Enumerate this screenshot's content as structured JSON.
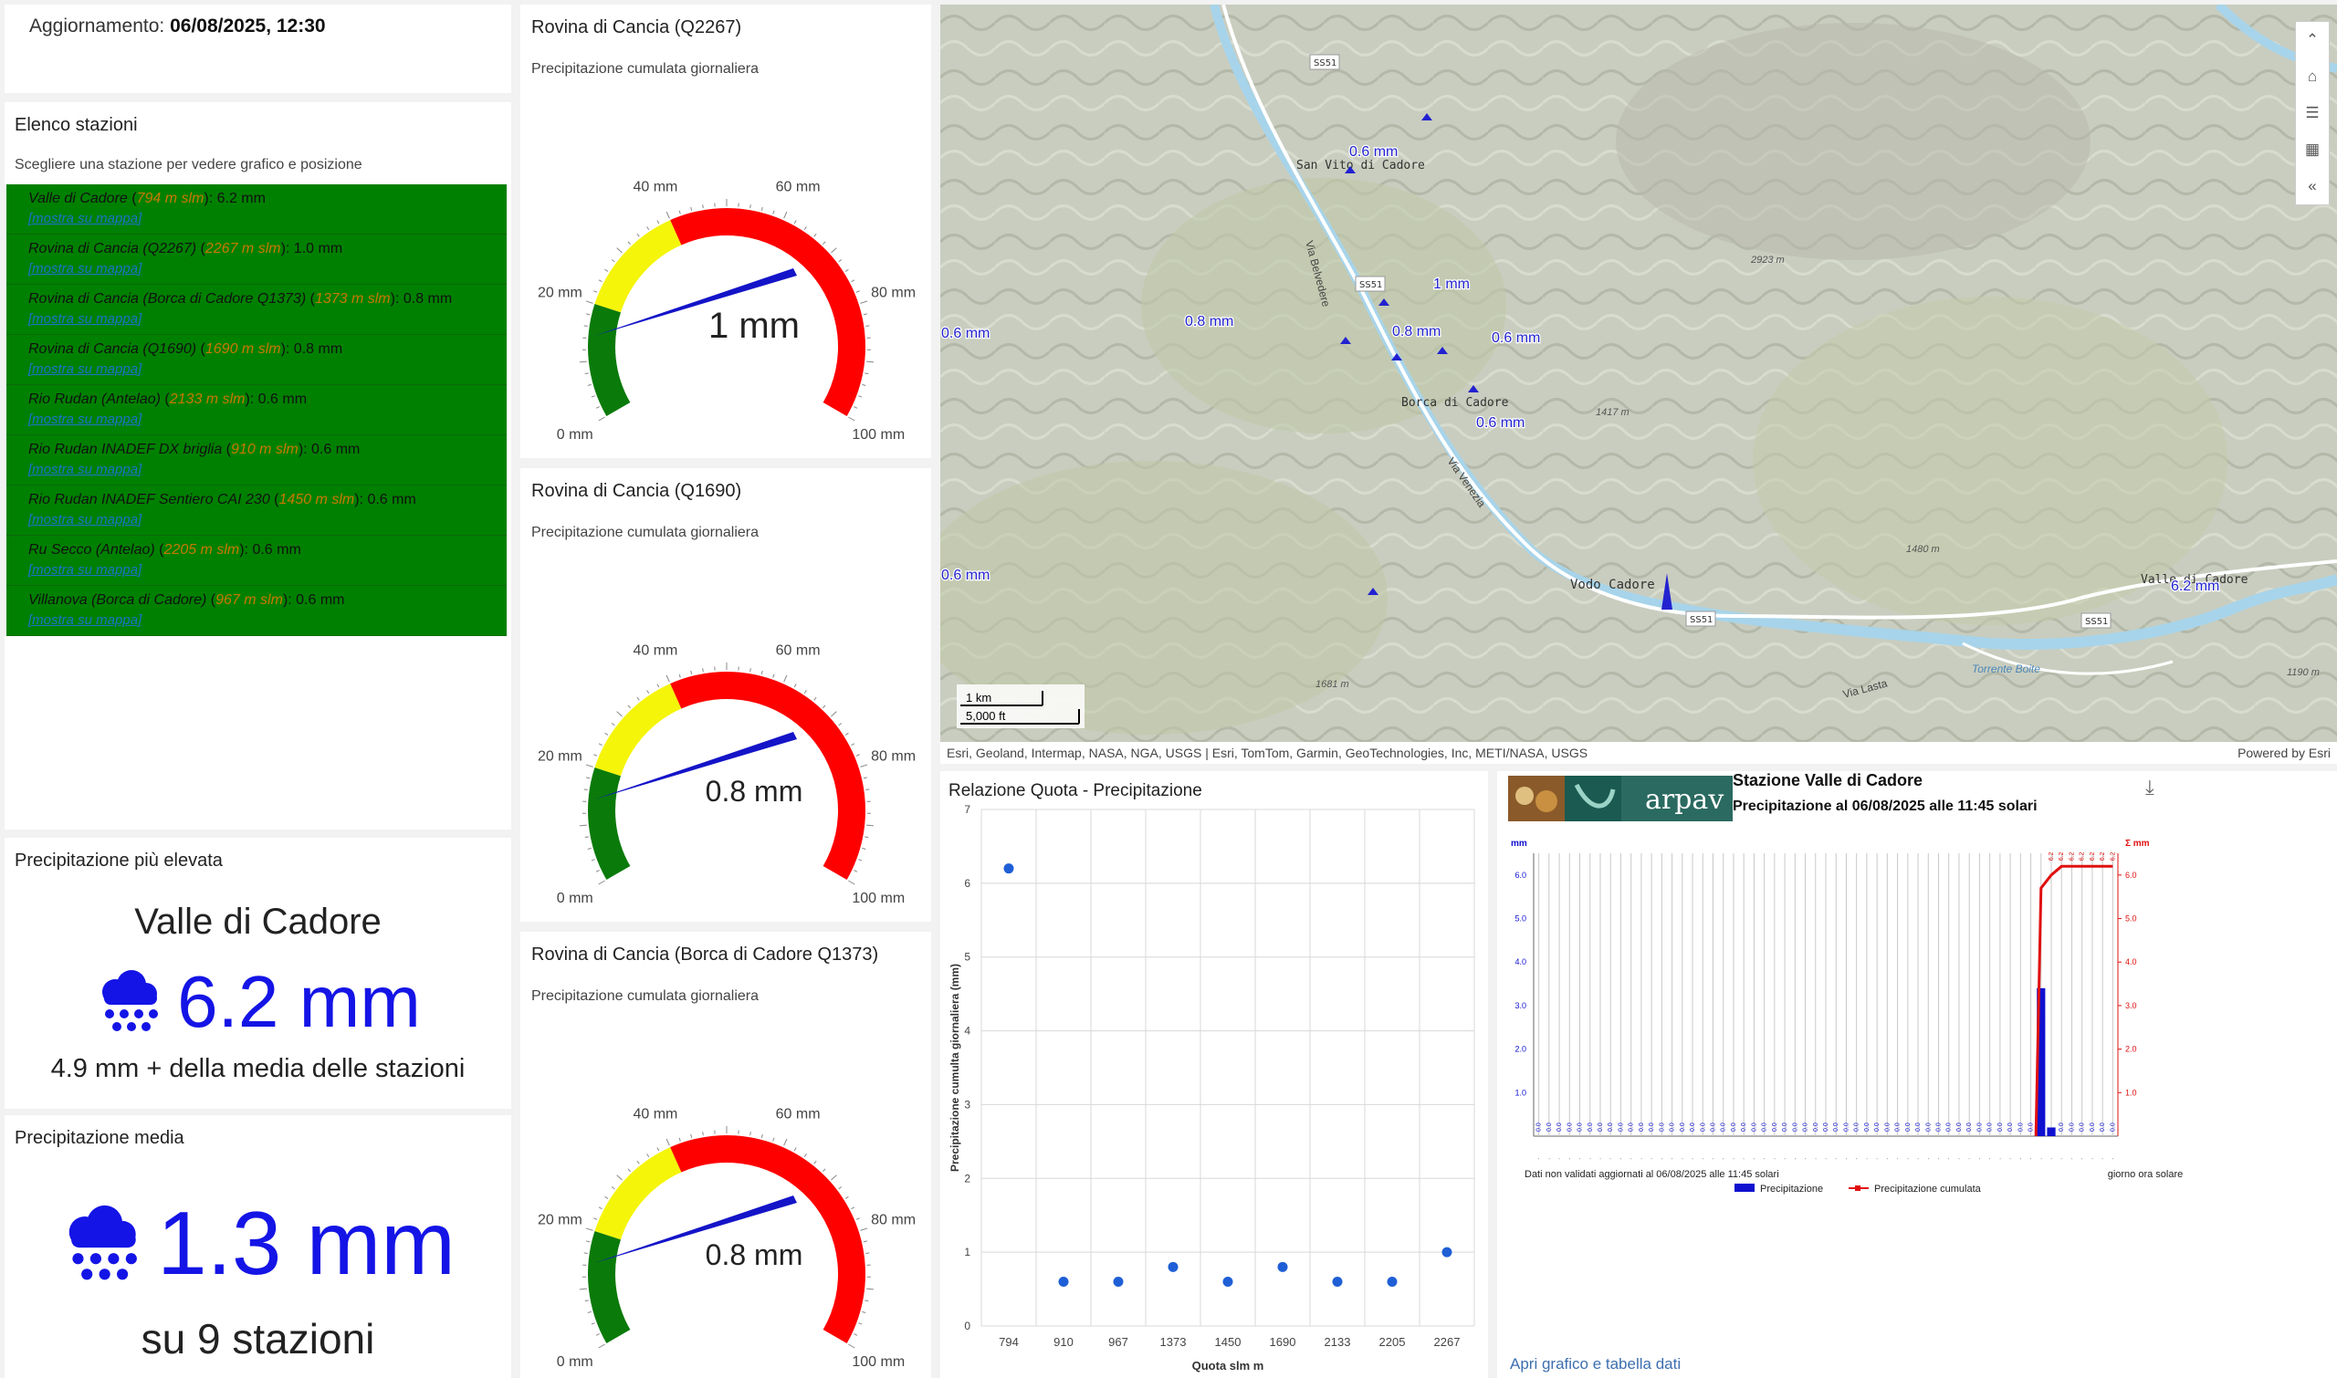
{
  "update": {
    "label": "Aggiornamento:",
    "value": "06/08/2025, 12:30"
  },
  "stations": {
    "title": "Elenco stazioni",
    "subtitle": "Scegliere una stazione per vedere grafico e posizione",
    "link_label": "[mostra su mappa]",
    "items": [
      {
        "name": "Valle di Cadore",
        "alt": "794 m slm",
        "value": "6.2 mm"
      },
      {
        "name": "Rovina di Cancia (Q2267)",
        "alt": "2267 m slm",
        "value": "1.0 mm"
      },
      {
        "name": "Rovina di Cancia (Borca di Cadore Q1373)",
        "alt": "1373 m slm",
        "value": "0.8 mm"
      },
      {
        "name": "Rovina di Cancia (Q1690)",
        "alt": "1690 m slm",
        "value": "0.8 mm"
      },
      {
        "name": "Rio Rudan (Antelao)",
        "alt": "2133 m slm",
        "value": "0.6 mm"
      },
      {
        "name": "Rio Rudan INADEF DX briglia",
        "alt": "910 m slm",
        "value": "0.6 mm"
      },
      {
        "name": "Rio Rudan INADEF Sentiero CAI 230",
        "alt": "1450 m slm",
        "value": "0.6 mm"
      },
      {
        "name": "Ru Secco (Antelao)",
        "alt": "2205 m slm",
        "value": "0.6 mm"
      },
      {
        "name": "Villanova (Borca di Cadore)",
        "alt": "967 m slm",
        "value": "0.6 mm"
      }
    ]
  },
  "max": {
    "title": "Precipitazione più elevata",
    "station": "Valle di Cadore",
    "value": "6.2 mm",
    "note": "4.9 mm + della media delle stazioni",
    "icon": "rain-cloud-icon"
  },
  "avg": {
    "title": "Precipitazione media",
    "value": "1.3 mm",
    "note": "su 9 stazioni",
    "icon": "rain-cloud-icon"
  },
  "gauges": [
    {
      "title": "Rovina di Cancia (Q2267)",
      "subtitle": "Precipitazione cumulata giornaliera",
      "value": 1,
      "display": "1 mm",
      "max": 100
    },
    {
      "title": "Rovina di Cancia (Q1690)",
      "subtitle": "Precipitazione cumulata giornaliera",
      "value": 0.8,
      "display": "0.8 mm",
      "max": 100
    },
    {
      "title": "Rovina di Cancia (Borca di Cadore Q1373)",
      "subtitle": "Precipitazione cumulata giornaliera",
      "value": 0.8,
      "display": "0.8 mm",
      "max": 100
    }
  ],
  "gauge_ticks": [
    "0 mm",
    "20 mm",
    "40 mm",
    "60 mm",
    "80 mm",
    "100 mm"
  ],
  "gauge_colors": {
    "green": "#0a7a0a",
    "yellow": "#f5f50a",
    "red": "#ff0000",
    "needle": "#1414c8"
  },
  "map": {
    "attribution": "Esri, Geoland, Intermap, NASA, NGA, USGS | Esri, TomTom, Garmin, GeoTechnologies, Inc, METI/NASA, USGS",
    "powered": "Powered by Esri",
    "scale_km": "1 km",
    "scale_ft": "5,000 ft",
    "places": [
      "San Vito di Cadore",
      "Borca di Cadore",
      "Vodo Cadore",
      "Valle di Cadore",
      "Via Venezia",
      "Via Lasta",
      "Torrente Boite",
      "Via Belvedere"
    ],
    "roads": [
      "SS51",
      "SS51",
      "SS51",
      "SS51"
    ],
    "markers": [
      "0.6 mm",
      "1 mm",
      "0.8 mm",
      "0.6 mm",
      "0.8 mm",
      "0.6 mm",
      "0.6 mm",
      "0.6 mm",
      "6.2 mm"
    ],
    "elevations": [
      "2923 m",
      "1417 m",
      "1480 m",
      "1681 m",
      "1190 m"
    ],
    "tools": [
      "chevron-up-icon",
      "home-icon",
      "layers-icon",
      "qr-icon",
      "collapse-icon"
    ]
  },
  "chart_data": [
    {
      "type": "scatter",
      "title": "Relazione Quota - Precipitazione",
      "xlabel": "Quota slm m",
      "ylabel": "Precipitazione cumulta giornaliera (mm)",
      "categories": [
        "794",
        "910",
        "967",
        "1373",
        "1450",
        "1690",
        "2133",
        "2205",
        "2267"
      ],
      "values": [
        6.2,
        0.6,
        0.6,
        0.8,
        0.6,
        0.8,
        0.6,
        0.6,
        1.0
      ],
      "ylim": [
        0,
        7
      ],
      "yticks": [
        "0",
        "1",
        "2",
        "3",
        "4",
        "5",
        "6",
        "7"
      ],
      "grid": true,
      "color": "#1f5fd6"
    },
    {
      "type": "bar",
      "title": "Stazione Valle di Cadore",
      "subtitle": "Precipitazione al 06/08/2025 alle 11:45 solari",
      "ylabel_left": "mm",
      "ylabel_right": "Σ mm",
      "yticks": [
        "1.0",
        "2.0",
        "3.0",
        "4.0",
        "5.0",
        "6.0"
      ],
      "ylim": [
        0,
        6.5
      ],
      "bar_values": [
        3.4,
        0.2
      ],
      "cumulative_final": 6.2,
      "interval_label": "0.0",
      "cumulative_label": "6.2",
      "footer_left": "Dati non validati aggiornati al 06/08/2025 alle 11:45 solari",
      "footer_right": "giorno ora solare",
      "legend": [
        "Precipitazione",
        "Precipitazione cumulata"
      ],
      "colors": {
        "bar": "#1010d0",
        "line": "#e01010"
      }
    }
  ],
  "arpav": {
    "logo_text": "arpav",
    "download_icon": "download-icon",
    "link": "Apri grafico e tabella dati"
  }
}
